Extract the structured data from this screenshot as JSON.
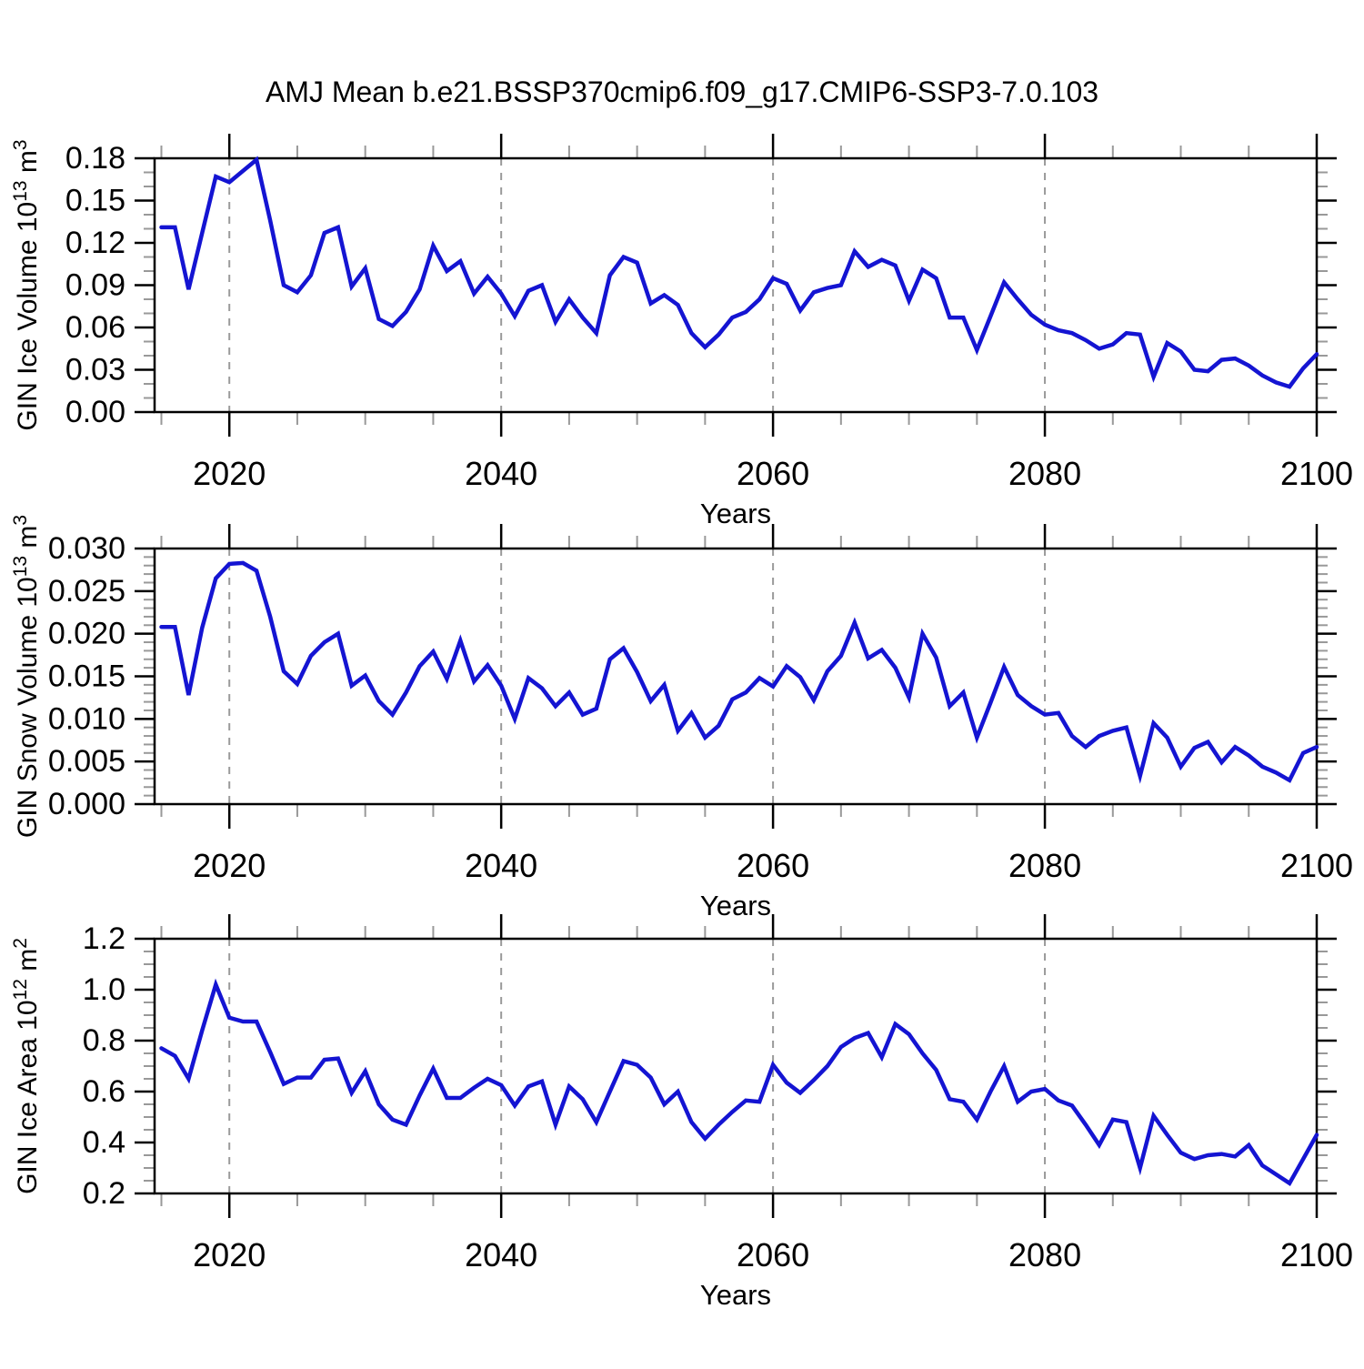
{
  "title": "AMJ Mean b.e21.BSSP370cmip6.f09_g17.CMIP6-SSP3-7.0.103",
  "style": {
    "line_color": "#1414d2",
    "grid_color": "#9a9a9a",
    "minor_tick_color": "#999999",
    "frame_color": "#000000",
    "background": "#ffffff"
  },
  "years": [
    2015,
    2016,
    2017,
    2018,
    2019,
    2020,
    2021,
    2022,
    2023,
    2024,
    2025,
    2026,
    2027,
    2028,
    2029,
    2030,
    2031,
    2032,
    2033,
    2034,
    2035,
    2036,
    2037,
    2038,
    2039,
    2040,
    2041,
    2042,
    2043,
    2044,
    2045,
    2046,
    2047,
    2048,
    2049,
    2050,
    2051,
    2052,
    2053,
    2054,
    2055,
    2056,
    2057,
    2058,
    2059,
    2060,
    2061,
    2062,
    2063,
    2064,
    2065,
    2066,
    2067,
    2068,
    2069,
    2070,
    2071,
    2072,
    2073,
    2074,
    2075,
    2076,
    2077,
    2078,
    2079,
    2080,
    2081,
    2082,
    2083,
    2084,
    2085,
    2086,
    2087,
    2088,
    2089,
    2090,
    2091,
    2092,
    2093,
    2094,
    2095,
    2096,
    2097,
    2098,
    2099,
    2100
  ],
  "x_axis": {
    "label": "Years",
    "min": 2014.5,
    "max": 2100,
    "major_ticks": [
      2020,
      2040,
      2060,
      2080,
      2100
    ],
    "tick_labels": [
      "2020",
      "2040",
      "2060",
      "2080",
      "2100"
    ],
    "minor_step": 5,
    "grid_years": [
      2020,
      2040,
      2060,
      2080
    ]
  },
  "chart_data": [
    {
      "type": "line",
      "ylabel": {
        "prefix": "GIN Ice Volume 10",
        "exponent": "13",
        "unit": " m",
        "unit_exponent": "3"
      },
      "xlabel": "Years",
      "ylim": [
        0,
        0.18
      ],
      "ytick_values": [
        0.0,
        0.03,
        0.06,
        0.09,
        0.12,
        0.15,
        0.18
      ],
      "ytick_labels": [
        "0.00",
        "0.03",
        "0.06",
        "0.09",
        "0.12",
        "0.15",
        "0.18"
      ],
      "y_minor_step": 0.01,
      "grid": "x-dashed",
      "legend": "none",
      "values": [
        0.131,
        0.131,
        0.087,
        0.127,
        0.167,
        0.163,
        0.171,
        0.179,
        0.136,
        0.09,
        0.085,
        0.097,
        0.127,
        0.131,
        0.089,
        0.102,
        0.066,
        0.061,
        0.071,
        0.087,
        0.118,
        0.1,
        0.107,
        0.084,
        0.096,
        0.084,
        0.068,
        0.086,
        0.09,
        0.064,
        0.08,
        0.067,
        0.056,
        0.097,
        0.11,
        0.106,
        0.077,
        0.083,
        0.076,
        0.056,
        0.046,
        0.055,
        0.067,
        0.071,
        0.08,
        0.095,
        0.091,
        0.072,
        0.085,
        0.088,
        0.09,
        0.114,
        0.103,
        0.108,
        0.104,
        0.079,
        0.101,
        0.095,
        0.067,
        0.067,
        0.044,
        0.068,
        0.092,
        0.08,
        0.069,
        0.062,
        0.058,
        0.056,
        0.051,
        0.045,
        0.048,
        0.056,
        0.055,
        0.025,
        0.049,
        0.043,
        0.03,
        0.029,
        0.037,
        0.038,
        0.033,
        0.026,
        0.021,
        0.018,
        0.031,
        0.041
      ]
    },
    {
      "type": "line",
      "ylabel": {
        "prefix": "GIN Snow Volume 10",
        "exponent": "13",
        "unit": " m",
        "unit_exponent": "3"
      },
      "xlabel": "Years",
      "ylim": [
        0,
        0.03
      ],
      "ytick_values": [
        0.0,
        0.005,
        0.01,
        0.015,
        0.02,
        0.025,
        0.03
      ],
      "ytick_labels": [
        "0.000",
        "0.005",
        "0.010",
        "0.015",
        "0.020",
        "0.025",
        "0.030"
      ],
      "y_minor_step": 0.001,
      "grid": "x-dashed",
      "legend": "none",
      "values": [
        0.0208,
        0.0208,
        0.0128,
        0.0207,
        0.0265,
        0.0282,
        0.0283,
        0.0274,
        0.022,
        0.0156,
        0.0141,
        0.0174,
        0.019,
        0.02,
        0.0139,
        0.0151,
        0.0121,
        0.0105,
        0.0131,
        0.0162,
        0.0179,
        0.0147,
        0.0192,
        0.0144,
        0.0163,
        0.0139,
        0.01,
        0.0148,
        0.0136,
        0.0115,
        0.0131,
        0.0105,
        0.0112,
        0.017,
        0.0183,
        0.0155,
        0.0121,
        0.014,
        0.0086,
        0.0107,
        0.0078,
        0.0092,
        0.0123,
        0.0131,
        0.0148,
        0.0138,
        0.0162,
        0.0149,
        0.0122,
        0.0156,
        0.0174,
        0.0213,
        0.0171,
        0.0181,
        0.016,
        0.0125,
        0.02,
        0.0172,
        0.0115,
        0.0131,
        0.0078,
        0.0119,
        0.0161,
        0.0128,
        0.0115,
        0.0105,
        0.0107,
        0.008,
        0.0067,
        0.008,
        0.0086,
        0.009,
        0.0033,
        0.0095,
        0.0078,
        0.0044,
        0.0066,
        0.0073,
        0.0049,
        0.0067,
        0.0057,
        0.0044,
        0.0037,
        0.0028,
        0.006,
        0.0067
      ]
    },
    {
      "type": "line",
      "ylabel": {
        "prefix": "GIN Ice Area 10",
        "exponent": "12",
        "unit": " m",
        "unit_exponent": "2"
      },
      "xlabel": "Years",
      "ylim": [
        0.2,
        1.2
      ],
      "ytick_values": [
        0.2,
        0.4,
        0.6,
        0.8,
        1.0,
        1.2
      ],
      "ytick_labels": [
        "0.2",
        "0.4",
        "0.6",
        "0.8",
        "1.0",
        "1.2"
      ],
      "y_minor_step": 0.05,
      "grid": "x-dashed",
      "legend": "none",
      "values": [
        0.77,
        0.74,
        0.65,
        0.84,
        1.02,
        0.89,
        0.875,
        0.875,
        0.755,
        0.63,
        0.655,
        0.655,
        0.725,
        0.73,
        0.595,
        0.68,
        0.55,
        0.49,
        0.47,
        0.585,
        0.69,
        0.575,
        0.575,
        0.615,
        0.65,
        0.625,
        0.545,
        0.62,
        0.64,
        0.47,
        0.62,
        0.57,
        0.48,
        0.6,
        0.72,
        0.705,
        0.655,
        0.55,
        0.6,
        0.48,
        0.415,
        0.47,
        0.52,
        0.565,
        0.56,
        0.705,
        0.635,
        0.595,
        0.645,
        0.7,
        0.775,
        0.81,
        0.83,
        0.735,
        0.865,
        0.825,
        0.75,
        0.685,
        0.57,
        0.56,
        0.49,
        0.6,
        0.7,
        0.56,
        0.6,
        0.61,
        0.565,
        0.545,
        0.47,
        0.39,
        0.49,
        0.48,
        0.3,
        0.505,
        0.43,
        0.36,
        0.335,
        0.35,
        0.355,
        0.345,
        0.39,
        0.31,
        0.275,
        0.24,
        0.335,
        0.43
      ]
    }
  ]
}
